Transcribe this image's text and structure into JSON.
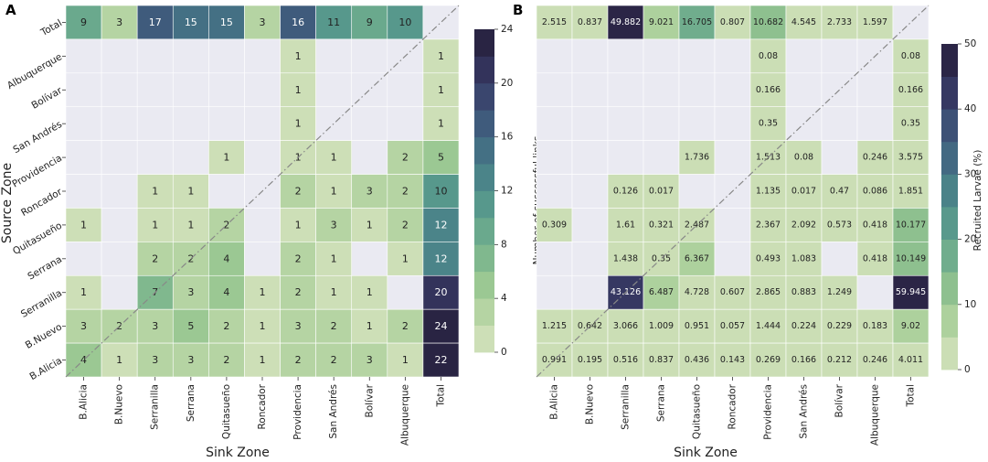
{
  "chart_data": [
    {
      "type": "heatmap",
      "panel": "A",
      "xlabel": "Sink Zone",
      "ylabel": "Source Zone",
      "x_categories": [
        "B.Alicia",
        "B.Nuevo",
        "Serranilla",
        "Serrana",
        "Quitasueño",
        "Roncador",
        "Providencia",
        "San Andrés",
        "Bolívar",
        "Albuquerque",
        "Total"
      ],
      "y_categories": [
        "Total",
        "Albuquerque",
        "Bolívar",
        "San Andrés",
        "Providencia",
        "Roncador",
        "Quitasueño",
        "Serrana",
        "Serranilla",
        "B.Nuevo",
        "B.Alicia"
      ],
      "values": [
        [
          9,
          3,
          17,
          15,
          15,
          3,
          16,
          11,
          9,
          10,
          null
        ],
        [
          null,
          null,
          null,
          null,
          null,
          null,
          1,
          null,
          null,
          null,
          1
        ],
        [
          null,
          null,
          null,
          null,
          null,
          null,
          1,
          null,
          null,
          null,
          1
        ],
        [
          null,
          null,
          null,
          null,
          null,
          null,
          1,
          null,
          null,
          null,
          1
        ],
        [
          null,
          null,
          null,
          null,
          1,
          null,
          1,
          1,
          null,
          2,
          5
        ],
        [
          null,
          null,
          1,
          1,
          null,
          null,
          2,
          1,
          3,
          2,
          10
        ],
        [
          1,
          null,
          1,
          1,
          2,
          null,
          1,
          3,
          1,
          2,
          12
        ],
        [
          null,
          null,
          2,
          2,
          4,
          null,
          2,
          1,
          null,
          1,
          12
        ],
        [
          1,
          null,
          7,
          3,
          4,
          1,
          2,
          1,
          1,
          null,
          20
        ],
        [
          3,
          2,
          3,
          5,
          2,
          1,
          3,
          2,
          1,
          2,
          24
        ],
        [
          4,
          1,
          3,
          3,
          2,
          1,
          2,
          2,
          3,
          1,
          22
        ]
      ],
      "value_labels": [
        [
          "9",
          "3",
          "17",
          "15",
          "15",
          "3",
          "16",
          "11",
          "9",
          "10",
          ""
        ],
        [
          "",
          "",
          "",
          "",
          "",
          "",
          "1",
          "",
          "",
          "",
          "1"
        ],
        [
          "",
          "",
          "",
          "",
          "",
          "",
          "1",
          "",
          "",
          "",
          "1"
        ],
        [
          "",
          "",
          "",
          "",
          "",
          "",
          "1",
          "",
          "",
          "",
          "1"
        ],
        [
          "",
          "",
          "",
          "",
          "1",
          "",
          "1",
          "1",
          "",
          "2",
          "5"
        ],
        [
          "",
          "",
          "1",
          "1",
          "",
          "",
          "2",
          "1",
          "3",
          "2",
          "10"
        ],
        [
          "1",
          "",
          "1",
          "1",
          "2",
          "",
          "1",
          "3",
          "1",
          "2",
          "12"
        ],
        [
          "",
          "",
          "2",
          "2",
          "4",
          "",
          "2",
          "1",
          "",
          "1",
          "12"
        ],
        [
          "1",
          "",
          "7",
          "3",
          "4",
          "1",
          "2",
          "1",
          "1",
          "",
          "20"
        ],
        [
          "3",
          "2",
          "3",
          "5",
          "2",
          "1",
          "3",
          "2",
          "1",
          "2",
          "24"
        ],
        [
          "4",
          "1",
          "3",
          "3",
          "2",
          "1",
          "2",
          "2",
          "3",
          "1",
          "22"
        ]
      ],
      "colorbar": {
        "label": "Number of successful links",
        "min": 0,
        "max": 24,
        "bins": 12,
        "ticks": [
          0,
          4,
          8,
          12,
          16,
          20,
          24
        ]
      }
    },
    {
      "type": "heatmap",
      "panel": "B",
      "xlabel": "Sink Zone",
      "ylabel": "",
      "x_categories": [
        "B.Alicia",
        "B.Nuevo",
        "Serranilla",
        "Serrana",
        "Quitasueño",
        "Roncador",
        "Providencia",
        "San Andrés",
        "Bolívar",
        "Albuquerque",
        "Total"
      ],
      "y_categories": [
        "Total",
        "Albuquerque",
        "Bolívar",
        "San Andrés",
        "Providencia",
        "Roncador",
        "Quitasueño",
        "Serrana",
        "Serranilla",
        "B.Nuevo",
        "B.Alicia"
      ],
      "values": [
        [
          2.515,
          0.837,
          49.882,
          9.021,
          16.705,
          0.807,
          10.682,
          4.545,
          2.733,
          1.597,
          null
        ],
        [
          null,
          null,
          null,
          null,
          null,
          null,
          0.08,
          null,
          null,
          null,
          0.08
        ],
        [
          null,
          null,
          null,
          null,
          null,
          null,
          0.166,
          null,
          null,
          null,
          0.166
        ],
        [
          null,
          null,
          null,
          null,
          null,
          null,
          0.35,
          null,
          null,
          null,
          0.35
        ],
        [
          null,
          null,
          null,
          null,
          1.736,
          null,
          1.513,
          0.08,
          null,
          0.246,
          3.575
        ],
        [
          null,
          null,
          0.126,
          0.017,
          null,
          null,
          1.135,
          0.017,
          0.47,
          0.086,
          1.851
        ],
        [
          0.309,
          null,
          1.61,
          0.321,
          2.487,
          null,
          2.367,
          2.092,
          0.573,
          0.418,
          10.177
        ],
        [
          null,
          null,
          1.438,
          0.35,
          6.367,
          null,
          0.493,
          1.083,
          null,
          0.418,
          10.149
        ],
        [
          null,
          null,
          43.126,
          6.487,
          4.728,
          0.607,
          2.865,
          0.883,
          1.249,
          null,
          59.945
        ],
        [
          1.215,
          0.642,
          3.066,
          1.009,
          0.951,
          0.057,
          1.444,
          0.224,
          0.229,
          0.183,
          9.02
        ],
        [
          0.991,
          0.195,
          0.516,
          0.837,
          0.436,
          0.143,
          0.269,
          0.166,
          0.212,
          0.246,
          4.011
        ]
      ],
      "value_labels": [
        [
          "2.515",
          "0.837",
          "49.882",
          "9.021",
          "16.705",
          "0.807",
          "10.682",
          "4.545",
          "2.733",
          "1.597",
          ""
        ],
        [
          "",
          "",
          "",
          "",
          "",
          "",
          "0.08",
          "",
          "",
          "",
          "0.08"
        ],
        [
          "",
          "",
          "",
          "",
          "",
          "",
          "0.166",
          "",
          "",
          "",
          "0.166"
        ],
        [
          "",
          "",
          "",
          "",
          "",
          "",
          "0.35",
          "",
          "",
          "",
          "0.35"
        ],
        [
          "",
          "",
          "",
          "",
          "1.736",
          "",
          "1.513",
          "0.08",
          "",
          "0.246",
          "3.575"
        ],
        [
          "",
          "",
          "0.126",
          "0.017",
          "",
          "",
          "1.135",
          "0.017",
          "0.47",
          "0.086",
          "1.851"
        ],
        [
          "0.309",
          "",
          "1.61",
          "0.321",
          "2.487",
          "",
          "2.367",
          "2.092",
          "0.573",
          "0.418",
          "10.177"
        ],
        [
          "",
          "",
          "1.438",
          "0.35",
          "6.367",
          "",
          "0.493",
          "1.083",
          "",
          "0.418",
          "10.149"
        ],
        [
          "",
          "",
          "43.126",
          "6.487",
          "4.728",
          "0.607",
          "2.865",
          "0.883",
          "1.249",
          "",
          "59.945"
        ],
        [
          "1.215",
          "0.642",
          "3.066",
          "1.009",
          "0.951",
          "0.057",
          "1.444",
          "0.224",
          "0.229",
          "0.183",
          "9.02"
        ],
        [
          "0.991",
          "0.195",
          "0.516",
          "0.837",
          "0.436",
          "0.143",
          "0.269",
          "0.166",
          "0.212",
          "0.246",
          "4.011"
        ]
      ],
      "colorbar": {
        "label": "Recruited Larvae (%)",
        "min": 0,
        "max": 50,
        "bins": 10,
        "ticks": [
          0,
          10,
          20,
          30,
          40,
          50
        ]
      }
    }
  ],
  "colors": {
    "empty_cell": "#eaeaf2",
    "diagonal_line": "#888888",
    "palette": [
      "#d8e4c1",
      "#c4daaf",
      "#acd09c",
      "#94c48f",
      "#7bb58e",
      "#67a78d",
      "#56978c",
      "#4b8589",
      "#457285",
      "#405f7e",
      "#3c4c73",
      "#363963",
      "#2e2a4e",
      "#241c37"
    ],
    "light_text": "#ffffff",
    "dark_text": "#222222"
  }
}
